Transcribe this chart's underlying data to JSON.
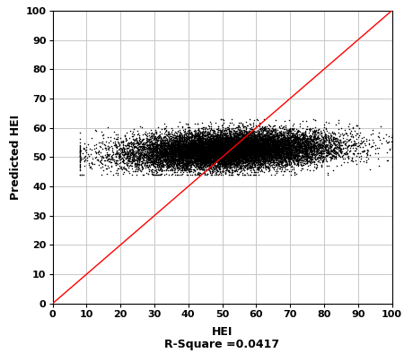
{
  "n_points": 16587,
  "r_square": 0.0417,
  "x_mean": 52.0,
  "x_std": 15.0,
  "y_mean": 52.5,
  "y_std": 3.2,
  "x_min_data": 8,
  "x_max_data": 100,
  "y_min_data": 44,
  "y_max_data": 63,
  "xlim": [
    0,
    100
  ],
  "ylim": [
    0,
    100
  ],
  "xticks": [
    0,
    10,
    20,
    30,
    40,
    50,
    60,
    70,
    80,
    90,
    100
  ],
  "yticks": [
    0,
    10,
    20,
    30,
    40,
    50,
    60,
    70,
    80,
    90,
    100
  ],
  "xlabel": "HEI",
  "xlabel2": "R-Square =0.0417",
  "ylabel": "Predicted HEI",
  "line_color": "#ff0000",
  "point_color": "#000000",
  "point_size": 1.2,
  "point_alpha": 1.0,
  "background_color": "#ffffff",
  "grid_color": "#c8c8c8",
  "seed": 42
}
